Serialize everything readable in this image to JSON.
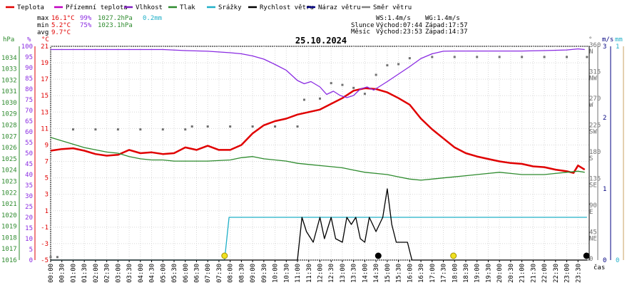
{
  "legend": [
    {
      "label": "Teplota",
      "color": "#e00000"
    },
    {
      "label": "Přízemní teplota",
      "color": "#c000c0"
    },
    {
      "label": "Vlhkost",
      "color": "#8020c0"
    },
    {
      "label": "Tlak",
      "color": "#2e8b2e"
    },
    {
      "label": "Srážky",
      "color": "#20b0c8"
    },
    {
      "label": "Rychlost větru",
      "color": "#000000"
    },
    {
      "label": "Náraz větru",
      "color": "#000080"
    },
    {
      "label": "Směr větru",
      "color": "#808080"
    }
  ],
  "stats": {
    "max_label": "max",
    "max_t": "16.1°C",
    "max_h": "99%",
    "max_p": "1027.2hPa",
    "rain": "0.2mm",
    "min_label": "min",
    "min_t": "5.2°C",
    "min_h": "75%",
    "min_p": "1023.1hPa",
    "avg_label": "avg",
    "avg_t": "9.7°C"
  },
  "astro": {
    "ws": "WS:1.4m/s",
    "wg": "WG:1.4m/s",
    "sun_label": "Slunce",
    "sunrise": "Východ:07:44",
    "sunset": "Západ:17:57",
    "moon_label": "Měsíc",
    "moonrise": "Východ:23:53",
    "moonset": "Západ:14:37"
  },
  "title": "25.10.2024",
  "axis_units": {
    "hpa": "hPa",
    "pct": "%",
    "degc": "°C",
    "deg": "°",
    "ms": "m/s",
    "mm": "mm",
    "cas": "čas"
  },
  "colors": {
    "temp": "#e00000",
    "hum": "#8a2be2",
    "press": "#2e8b2e",
    "rain": "#20b0c8",
    "wind": "#000000",
    "dir": "#707070",
    "sun": "#f0e020"
  },
  "chart_data": {
    "type": "line",
    "title": "25.10.2024",
    "x_ticks": [
      "00:00",
      "00:30",
      "01:00",
      "01:30",
      "02:00",
      "02:30",
      "03:00",
      "03:30",
      "04:00",
      "04:30",
      "05:00",
      "05:30",
      "06:00",
      "06:30",
      "07:00",
      "07:30",
      "08:00",
      "08:30",
      "09:00",
      "09:30",
      "10:00",
      "10:30",
      "11:00",
      "11:30",
      "12:00",
      "12:30",
      "13:00",
      "13:30",
      "14:00",
      "14:30",
      "15:00",
      "15:30",
      "16:00",
      "16:30",
      "17:00",
      "17:30",
      "18:00",
      "18:30",
      "19:00",
      "19:30",
      "20:00",
      "20:30",
      "21:00",
      "21:30",
      "22:00",
      "22:30",
      "23:00",
      "23:30"
    ],
    "axes": {
      "pressure_hpa": {
        "min": 1016,
        "max": 1035,
        "ticks": [
          1016,
          1017,
          1018,
          1019,
          1020,
          1021,
          1022,
          1023,
          1024,
          1025,
          1026,
          1027,
          1028,
          1029,
          1030,
          1031,
          1032,
          1033,
          1034
        ]
      },
      "humidity_pct": {
        "min": 0,
        "max": 100,
        "ticks": [
          0,
          5,
          10,
          15,
          20,
          25,
          30,
          35,
          40,
          45,
          50,
          55,
          60,
          65,
          70,
          75,
          80,
          85,
          90,
          95,
          100
        ]
      },
      "temperature_c": {
        "min": -5,
        "max": 21,
        "ticks": [
          -5,
          -3,
          -1,
          1,
          3,
          5,
          7,
          9,
          11,
          13,
          15,
          17,
          19,
          21
        ]
      },
      "wind_dir_deg": {
        "min": 0,
        "max": 360,
        "ticks": [
          {
            "v": 360,
            "l": "N"
          },
          {
            "v": 315,
            "l": "NW"
          },
          {
            "v": 270,
            "l": "W"
          },
          {
            "v": 225,
            "l": "SW"
          },
          {
            "v": 180,
            "l": "S"
          },
          {
            "v": 135,
            "l": "SE"
          },
          {
            "v": 90,
            "l": "E"
          },
          {
            "v": 45,
            "l": "NE"
          },
          {
            "v": 0,
            "l": ""
          }
        ]
      },
      "wind_ms": {
        "min": 0,
        "max": 3,
        "ticks": [
          0,
          1,
          2,
          3
        ]
      },
      "rain_mm": {
        "min": 0,
        "max": 1,
        "ticks": [
          0,
          1
        ]
      }
    },
    "series": [
      {
        "name": "Teplota",
        "color": "#e00000",
        "axis": "temperature_c",
        "points": [
          [
            0,
            8.3
          ],
          [
            0.5,
            8.5
          ],
          [
            1,
            8.6
          ],
          [
            1.5,
            8.3
          ],
          [
            2,
            7.9
          ],
          [
            2.5,
            7.7
          ],
          [
            3,
            7.8
          ],
          [
            3.5,
            8.4
          ],
          [
            4,
            8.0
          ],
          [
            4.5,
            8.1
          ],
          [
            5,
            7.9
          ],
          [
            5.5,
            8.0
          ],
          [
            6,
            8.7
          ],
          [
            6.5,
            8.4
          ],
          [
            7,
            8.9
          ],
          [
            7.5,
            8.4
          ],
          [
            8,
            8.4
          ],
          [
            8.5,
            9.0
          ],
          [
            9,
            10.4
          ],
          [
            9.5,
            11.4
          ],
          [
            10,
            11.9
          ],
          [
            10.5,
            12.2
          ],
          [
            11,
            12.7
          ],
          [
            11.5,
            13.0
          ],
          [
            12,
            13.3
          ],
          [
            12.5,
            14.0
          ],
          [
            13,
            14.7
          ],
          [
            13.5,
            15.6
          ],
          [
            14,
            15.9
          ],
          [
            14.5,
            15.8
          ],
          [
            15,
            15.4
          ],
          [
            15.5,
            14.7
          ],
          [
            16,
            13.9
          ],
          [
            16.5,
            12.2
          ],
          [
            17,
            10.9
          ],
          [
            17.5,
            9.8
          ],
          [
            18,
            8.7
          ],
          [
            18.5,
            8.0
          ],
          [
            19,
            7.6
          ],
          [
            19.5,
            7.3
          ],
          [
            20,
            7.0
          ],
          [
            20.5,
            6.8
          ],
          [
            21,
            6.7
          ],
          [
            21.5,
            6.4
          ],
          [
            22,
            6.3
          ],
          [
            22.5,
            6.0
          ],
          [
            23,
            5.8
          ],
          [
            23.3,
            5.6
          ],
          [
            23.5,
            6.5
          ],
          [
            23.8,
            6.0
          ]
        ]
      },
      {
        "name": "Vlhkost",
        "color": "#8a2be2",
        "axis": "humidity_pct",
        "points": [
          [
            0,
            98.5
          ],
          [
            1,
            98.5
          ],
          [
            2,
            98.5
          ],
          [
            3,
            98.5
          ],
          [
            4,
            98.5
          ],
          [
            5,
            98.5
          ],
          [
            6,
            98
          ],
          [
            7,
            97.7
          ],
          [
            8,
            97
          ],
          [
            8.5,
            96.5
          ],
          [
            9,
            95.5
          ],
          [
            9.5,
            94
          ],
          [
            10,
            91.5
          ],
          [
            10.5,
            88.8
          ],
          [
            11,
            84
          ],
          [
            11.3,
            82.5
          ],
          [
            11.6,
            83.5
          ],
          [
            12,
            81
          ],
          [
            12.3,
            77.5
          ],
          [
            12.6,
            79
          ],
          [
            12.9,
            77
          ],
          [
            13.2,
            76
          ],
          [
            13.5,
            77
          ],
          [
            13.8,
            80
          ],
          [
            14.1,
            81
          ],
          [
            14.4,
            79.5
          ],
          [
            14.7,
            81.5
          ],
          [
            15,
            83.5
          ],
          [
            15.5,
            87
          ],
          [
            16,
            90.5
          ],
          [
            16.5,
            94.3
          ],
          [
            17,
            96.5
          ],
          [
            17.5,
            97.7
          ],
          [
            18,
            97.8
          ],
          [
            19,
            97.8
          ],
          [
            20,
            97.8
          ],
          [
            21,
            97.8
          ],
          [
            22,
            98
          ],
          [
            23,
            98.3
          ],
          [
            23.5,
            98.8
          ],
          [
            23.8,
            98.5
          ]
        ]
      },
      {
        "name": "Tlak",
        "color": "#2e8b2e",
        "axis": "pressure_hpa",
        "points": [
          [
            0,
            1026.9
          ],
          [
            0.5,
            1026.6
          ],
          [
            1,
            1026.3
          ],
          [
            1.5,
            1026.0
          ],
          [
            2,
            1025.8
          ],
          [
            2.5,
            1025.6
          ],
          [
            3,
            1025.5
          ],
          [
            3.5,
            1025.2
          ],
          [
            4,
            1025.0
          ],
          [
            4.5,
            1024.9
          ],
          [
            5,
            1024.9
          ],
          [
            5.5,
            1024.8
          ],
          [
            6,
            1024.8
          ],
          [
            7,
            1024.8
          ],
          [
            8,
            1024.9
          ],
          [
            8.5,
            1025.1
          ],
          [
            9,
            1025.2
          ],
          [
            9.5,
            1025.0
          ],
          [
            10,
            1024.9
          ],
          [
            10.5,
            1024.8
          ],
          [
            11,
            1024.6
          ],
          [
            11.5,
            1024.5
          ],
          [
            12,
            1024.4
          ],
          [
            12.5,
            1024.3
          ],
          [
            13,
            1024.2
          ],
          [
            13.5,
            1024.0
          ],
          [
            14,
            1023.8
          ],
          [
            14.5,
            1023.7
          ],
          [
            15,
            1023.6
          ],
          [
            15.5,
            1023.4
          ],
          [
            16,
            1023.2
          ],
          [
            16.5,
            1023.1
          ],
          [
            17,
            1023.2
          ],
          [
            17.5,
            1023.3
          ],
          [
            18,
            1023.4
          ],
          [
            18.5,
            1023.5
          ],
          [
            19,
            1023.6
          ],
          [
            19.5,
            1023.7
          ],
          [
            20,
            1023.8
          ],
          [
            20.5,
            1023.7
          ],
          [
            21,
            1023.6
          ],
          [
            21.5,
            1023.6
          ],
          [
            22,
            1023.6
          ],
          [
            22.5,
            1023.7
          ],
          [
            23,
            1023.8
          ],
          [
            23.5,
            1023.9
          ],
          [
            23.8,
            1023.8
          ]
        ]
      },
      {
        "name": "Srážky",
        "color": "#20b0c8",
        "axis": "rain_mm",
        "points": [
          [
            0,
            0
          ],
          [
            7.75,
            0
          ],
          [
            7.95,
            0.2
          ],
          [
            23.9,
            0.2
          ]
        ]
      },
      {
        "name": "Rychlost větru",
        "color": "#000000",
        "axis": "wind_ms",
        "points": [
          [
            0,
            0
          ],
          [
            11,
            0
          ],
          [
            11.2,
            0.6
          ],
          [
            11.4,
            0.4
          ],
          [
            11.7,
            0.25
          ],
          [
            12,
            0.6
          ],
          [
            12.2,
            0.3
          ],
          [
            12.5,
            0.6
          ],
          [
            12.7,
            0.3
          ],
          [
            13,
            0.25
          ],
          [
            13.2,
            0.6
          ],
          [
            13.4,
            0.5
          ],
          [
            13.6,
            0.6
          ],
          [
            13.8,
            0.3
          ],
          [
            14,
            0.25
          ],
          [
            14.2,
            0.6
          ],
          [
            14.5,
            0.4
          ],
          [
            14.8,
            0.6
          ],
          [
            15,
            1.0
          ],
          [
            15.2,
            0.5
          ],
          [
            15.4,
            0.25
          ],
          [
            15.6,
            0.25
          ],
          [
            15.9,
            0.25
          ],
          [
            16.1,
            0
          ],
          [
            23.9,
            0
          ]
        ]
      }
    ],
    "wind_direction_deg": [
      [
        0,
        5
      ],
      [
        0.3,
        5
      ],
      [
        1,
        220
      ],
      [
        2,
        220
      ],
      [
        3,
        220
      ],
      [
        4,
        220
      ],
      [
        5,
        220
      ],
      [
        6,
        220
      ],
      [
        6.3,
        225
      ],
      [
        7,
        225
      ],
      [
        8,
        225
      ],
      [
        9,
        225
      ],
      [
        10,
        225
      ],
      [
        11,
        225
      ],
      [
        11.3,
        270
      ],
      [
        12,
        272
      ],
      [
        12.5,
        298
      ],
      [
        13,
        295
      ],
      [
        13.5,
        290
      ],
      [
        14,
        280
      ],
      [
        14.5,
        312
      ],
      [
        15,
        328
      ],
      [
        15.5,
        330
      ],
      [
        16,
        340
      ],
      [
        17,
        342
      ],
      [
        18,
        342
      ],
      [
        19,
        342
      ],
      [
        20,
        342
      ],
      [
        21,
        342
      ],
      [
        22,
        342
      ],
      [
        23,
        342
      ],
      [
        23.9,
        342
      ]
    ],
    "sun_markers": [
      7.75,
      17.95
    ],
    "moon_markers": [
      14.6,
      23.88
    ]
  }
}
